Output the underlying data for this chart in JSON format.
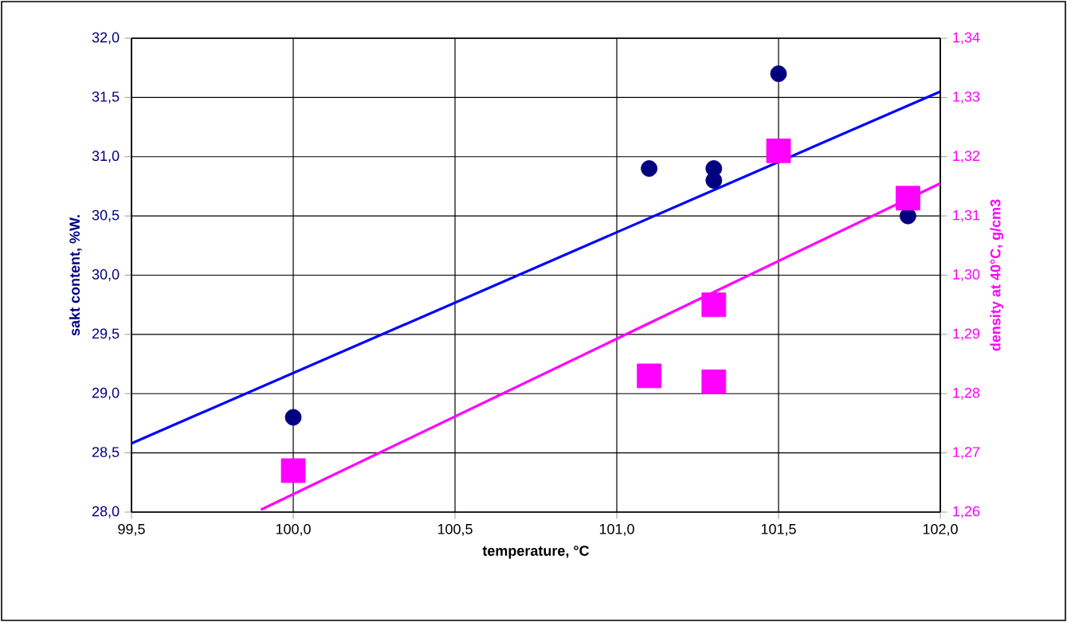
{
  "chart_data": {
    "type": "scatter",
    "xlabel": "temperature, °C",
    "ylabel": "sakt content, %W.",
    "y2label": "density at 40°C, g/cm3",
    "xlim": [
      99.5,
      102.0
    ],
    "xticks": [
      {
        "value": 99.5,
        "label": "99,5"
      },
      {
        "value": 100.0,
        "label": "100,0"
      },
      {
        "value": 100.5,
        "label": "100,5"
      },
      {
        "value": 101.0,
        "label": "101,0"
      },
      {
        "value": 101.5,
        "label": "101,5"
      },
      {
        "value": 102.0,
        "label": "102,0"
      }
    ],
    "ylim": [
      28.0,
      32.0
    ],
    "yticks": [
      {
        "value": 28.0,
        "label": "28,0"
      },
      {
        "value": 28.5,
        "label": "28,5"
      },
      {
        "value": 29.0,
        "label": "29,0"
      },
      {
        "value": 29.5,
        "label": "29,5"
      },
      {
        "value": 30.0,
        "label": "30,0"
      },
      {
        "value": 30.5,
        "label": "30,5"
      },
      {
        "value": 31.0,
        "label": "31,0"
      },
      {
        "value": 31.5,
        "label": "31,5"
      },
      {
        "value": 32.0,
        "label": "32,0"
      }
    ],
    "y2lim": [
      1.26,
      1.34
    ],
    "y2ticks": [
      {
        "value": 1.26,
        "label": "1,26"
      },
      {
        "value": 1.27,
        "label": "1,27"
      },
      {
        "value": 1.28,
        "label": "1,28"
      },
      {
        "value": 1.29,
        "label": "1,29"
      },
      {
        "value": 1.3,
        "label": "1,30"
      },
      {
        "value": 1.31,
        "label": "1,31"
      },
      {
        "value": 1.32,
        "label": "1,32"
      },
      {
        "value": 1.33,
        "label": "1,33"
      },
      {
        "value": 1.34,
        "label": "1,34"
      }
    ],
    "grid": true,
    "series": [
      {
        "marker": "circle",
        "color": "#000080",
        "x": [
          100.0,
          101.1,
          101.3,
          101.3,
          101.5,
          101.9
        ],
        "values": [
          28.8,
          30.9,
          30.9,
          30.8,
          31.7,
          30.5
        ]
      },
      {
        "marker": "square",
        "axis": "y2",
        "color": "#ff00ff",
        "x": [
          100.0,
          101.1,
          101.3,
          101.3,
          101.5,
          101.9
        ],
        "values": [
          1.267,
          1.283,
          1.282,
          1.295,
          1.321,
          1.313
        ]
      },
      {
        "type": "line",
        "marker": "none",
        "color": "#0000ff",
        "x": [
          99.5,
          102.0
        ],
        "values": [
          28.58,
          31.55
        ]
      },
      {
        "type": "line",
        "marker": "none",
        "axis": "y2",
        "color": "#ff00ff",
        "x": [
          99.9,
          102.0
        ],
        "values": [
          1.2604,
          1.3155
        ]
      }
    ]
  }
}
